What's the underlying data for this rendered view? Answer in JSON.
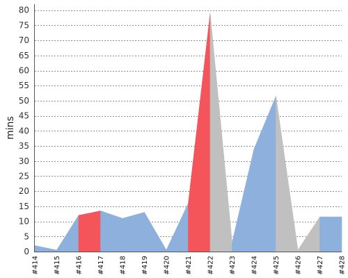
{
  "chart_data": {
    "type": "area",
    "categories": [
      "#414",
      "#415",
      "#416",
      "#417",
      "#418",
      "#419",
      "#420",
      "#421",
      "#422",
      "#423",
      "#424",
      "#425",
      "#426",
      "#427",
      "#428"
    ],
    "values": [
      2,
      0.5,
      12,
      13.5,
      11,
      13,
      0.5,
      16,
      79,
      3,
      34,
      51.5,
      0.5,
      11.5,
      11.5
    ],
    "segment_status": [
      "blue",
      "blue",
      "red",
      "blue",
      "blue",
      "blue",
      "blue",
      "red",
      "gray",
      "blue",
      "blue",
      "gray",
      "gray",
      "blue"
    ],
    "title": "",
    "xlabel": "",
    "ylabel": "mins",
    "ylim": [
      0,
      82
    ],
    "yticks": [
      0,
      5,
      10,
      15,
      20,
      25,
      30,
      35,
      40,
      45,
      50,
      55,
      60,
      65,
      70,
      75,
      80
    ],
    "grid": "horizontal-dashed",
    "colors": {
      "blue": "#8db0dc",
      "red": "#f4555a",
      "gray": "#c0c0c0",
      "grid": "#8a8a8a",
      "axis": "#555555"
    }
  }
}
